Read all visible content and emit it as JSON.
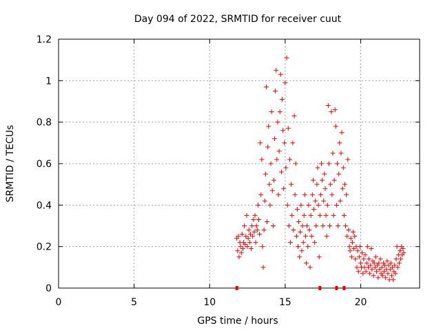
{
  "chart_data": {
    "type": "scatter",
    "title": "Day 094 of 2022, SRMTID for receiver cuut",
    "xlabel": "GPS time / hours",
    "ylabel": "SRMTID / TECUs",
    "xlim": [
      0,
      23.9
    ],
    "ylim": [
      0,
      1.2
    ],
    "xticks": [
      0,
      5,
      10,
      15,
      20
    ],
    "yticks": [
      0,
      0.2,
      0.4,
      0.6,
      0.8,
      1,
      1.2
    ],
    "grid": true,
    "marker": "plus",
    "marker_color": "#ee0000",
    "series": [
      {
        "name": "SRMTID",
        "points": [
          [
            11.8,
            0.24
          ],
          [
            11.85,
            0.18
          ],
          [
            11.9,
            0.25
          ],
          [
            11.95,
            0.15
          ],
          [
            12.0,
            0.22
          ],
          [
            12.05,
            0.2
          ],
          [
            12.1,
            0.17
          ],
          [
            12.15,
            0.26
          ],
          [
            12.2,
            0.19
          ],
          [
            12.25,
            0.22
          ],
          [
            12.3,
            0.3
          ],
          [
            12.35,
            0.21
          ],
          [
            12.4,
            0.25
          ],
          [
            12.45,
            0.35
          ],
          [
            12.5,
            0.2
          ],
          [
            12.55,
            0.24
          ],
          [
            12.6,
            0.28
          ],
          [
            12.65,
            0.22
          ],
          [
            12.7,
            0.26
          ],
          [
            12.75,
            0.19
          ],
          [
            12.8,
            0.3
          ],
          [
            12.85,
            0.25
          ],
          [
            12.9,
            0.33
          ],
          [
            12.95,
            0.27
          ],
          [
            13.0,
            0.35
          ],
          [
            13.05,
            0.22
          ],
          [
            13.1,
            0.3
          ],
          [
            13.15,
            0.28
          ],
          [
            13.2,
            0.4
          ],
          [
            13.25,
            0.33
          ],
          [
            13.3,
            0.26
          ],
          [
            13.35,
            0.7
          ],
          [
            13.4,
            0.45
          ],
          [
            13.45,
            0.62
          ],
          [
            13.5,
            0.2
          ],
          [
            13.55,
            0.1
          ],
          [
            13.6,
            0.28
          ],
          [
            13.65,
            0.42
          ],
          [
            13.7,
            0.55
          ],
          [
            13.75,
            0.97
          ],
          [
            13.8,
            0.32
          ],
          [
            13.85,
            0.68
          ],
          [
            13.9,
            0.78
          ],
          [
            13.95,
            0.5
          ],
          [
            14.0,
            0.4
          ],
          [
            14.05,
            0.6
          ],
          [
            14.1,
            0.85
          ],
          [
            14.15,
            0.47
          ],
          [
            14.2,
            0.3
          ],
          [
            14.25,
            0.52
          ],
          [
            14.3,
            0.72
          ],
          [
            14.35,
            0.95
          ],
          [
            14.4,
            1.05
          ],
          [
            14.45,
            0.62
          ],
          [
            14.5,
            0.8
          ],
          [
            14.55,
            0.45
          ],
          [
            14.6,
            0.66
          ],
          [
            14.65,
            0.85
          ],
          [
            14.7,
            1.03
          ],
          [
            14.75,
            0.56
          ],
          [
            14.8,
            0.91
          ],
          [
            14.85,
            0.76
          ],
          [
            14.9,
            0.48
          ],
          [
            14.95,
            0.7
          ],
          [
            15.0,
            0.99
          ],
          [
            15.05,
            0.58
          ],
          [
            15.1,
            1.11
          ],
          [
            15.15,
            0.4
          ],
          [
            15.2,
            0.77
          ],
          [
            15.25,
            0.3
          ],
          [
            15.3,
            0.62
          ],
          [
            15.35,
            0.22
          ],
          [
            15.4,
            0.5
          ],
          [
            15.45,
            0.35
          ],
          [
            15.5,
            0.7
          ],
          [
            15.55,
            0.28
          ],
          [
            15.6,
            0.83
          ],
          [
            15.65,
            0.45
          ],
          [
            15.7,
            0.6
          ],
          [
            15.75,
            0.25
          ],
          [
            15.8,
            0.38
          ],
          [
            15.85,
            0.2
          ],
          [
            15.9,
            0.32
          ],
          [
            15.95,
            0.15
          ],
          [
            16.0,
            0.27
          ],
          [
            16.05,
            0.4
          ],
          [
            16.1,
            0.18
          ],
          [
            16.15,
            0.3
          ],
          [
            16.2,
            0.22
          ],
          [
            16.25,
            0.35
          ],
          [
            16.3,
            0.45
          ],
          [
            16.35,
            0.25
          ],
          [
            16.4,
            0.12
          ],
          [
            16.45,
            0.3
          ],
          [
            16.5,
            0.2
          ],
          [
            16.55,
            0.4
          ],
          [
            16.6,
            0.28
          ],
          [
            16.65,
            0.1
          ],
          [
            16.7,
            0.35
          ],
          [
            16.75,
            0.25
          ],
          [
            16.8,
            0.45
          ],
          [
            16.85,
            0.52
          ],
          [
            16.9,
            0.38
          ],
          [
            16.95,
            0.22
          ],
          [
            17.0,
            0.42
          ],
          [
            17.05,
            0.3
          ],
          [
            17.1,
            0.5
          ],
          [
            17.15,
            0.58
          ],
          [
            17.2,
            0.4
          ],
          [
            17.25,
            0.15
          ],
          [
            17.3,
            0.35
          ],
          [
            17.35,
            0.45
          ],
          [
            17.4,
            0.6
          ],
          [
            17.45,
            0.52
          ],
          [
            17.5,
            0.3
          ],
          [
            17.55,
            0.42
          ],
          [
            17.6,
            0.55
          ],
          [
            17.65,
            0.48
          ],
          [
            17.7,
            0.35
          ],
          [
            17.75,
            0.25
          ],
          [
            17.8,
            0.4
          ],
          [
            17.85,
            0.88
          ],
          [
            17.9,
            0.6
          ],
          [
            17.95,
            0.3
          ],
          [
            18.0,
            0.5
          ],
          [
            18.05,
            0.85
          ],
          [
            18.1,
            0.45
          ],
          [
            18.15,
            0.65
          ],
          [
            18.2,
            0.35
          ],
          [
            18.25,
            0.52
          ],
          [
            18.3,
            0.86
          ],
          [
            18.35,
            0.78
          ],
          [
            18.4,
            0.4
          ],
          [
            18.45,
            0.6
          ],
          [
            18.5,
            0.3
          ],
          [
            18.55,
            0.55
          ],
          [
            18.6,
            0.7
          ],
          [
            18.65,
            0.42
          ],
          [
            18.7,
            0.65
          ],
          [
            18.75,
            0.75
          ],
          [
            18.8,
            0.48
          ],
          [
            18.85,
            0.58
          ],
          [
            18.9,
            0.35
          ],
          [
            18.95,
            0.5
          ],
          [
            19.0,
            0.3
          ],
          [
            19.05,
            0.45
          ],
          [
            19.1,
            0.25
          ],
          [
            19.15,
            0.62
          ],
          [
            19.2,
            0.28
          ],
          [
            19.25,
            0.2
          ],
          [
            19.3,
            0.18
          ],
          [
            19.35,
            0.24
          ],
          [
            19.4,
            0.15
          ],
          [
            19.45,
            0.22
          ],
          [
            19.5,
            0.27
          ],
          [
            19.55,
            0.19
          ],
          [
            19.6,
            0.25
          ],
          [
            19.65,
            0.14
          ],
          [
            19.7,
            0.2
          ],
          [
            19.75,
            0.1
          ],
          [
            19.8,
            0.18
          ],
          [
            19.85,
            0.08
          ],
          [
            19.9,
            0.15
          ],
          [
            19.95,
            0.2
          ],
          [
            20.0,
            0.12
          ],
          [
            20.05,
            0.1
          ],
          [
            20.1,
            0.17
          ],
          [
            20.15,
            0.07
          ],
          [
            20.2,
            0.14
          ],
          [
            20.25,
            0.1
          ],
          [
            20.3,
            0.16
          ],
          [
            20.35,
            0.08
          ],
          [
            20.4,
            0.12
          ],
          [
            20.45,
            0.2
          ],
          [
            20.5,
            0.1
          ],
          [
            20.55,
            0.14
          ],
          [
            20.6,
            0.07
          ],
          [
            20.65,
            0.11
          ],
          [
            20.7,
            0.19
          ],
          [
            20.75,
            0.09
          ],
          [
            20.8,
            0.13
          ],
          [
            20.85,
            0.06
          ],
          [
            20.9,
            0.12
          ],
          [
            20.95,
            0.1
          ],
          [
            21.0,
            0.15
          ],
          [
            21.05,
            0.08
          ],
          [
            21.1,
            0.11
          ],
          [
            21.15,
            0.05
          ],
          [
            21.2,
            0.12
          ],
          [
            21.25,
            0.09
          ],
          [
            21.3,
            0.14
          ],
          [
            21.35,
            0.07
          ],
          [
            21.4,
            0.1
          ],
          [
            21.45,
            0.06
          ],
          [
            21.5,
            0.12
          ],
          [
            21.55,
            0.08
          ],
          [
            21.6,
            0.11
          ],
          [
            21.65,
            0.05
          ],
          [
            21.7,
            0.09
          ],
          [
            21.75,
            0.13
          ],
          [
            21.8,
            0.07
          ],
          [
            21.85,
            0.11
          ],
          [
            21.9,
            0.04
          ],
          [
            21.95,
            0.09
          ],
          [
            22.0,
            0.12
          ],
          [
            22.05,
            0.06
          ],
          [
            22.1,
            0.1
          ],
          [
            22.15,
            0.04
          ],
          [
            22.2,
            0.08
          ],
          [
            22.25,
            0.11
          ],
          [
            22.3,
            0.07
          ],
          [
            22.35,
            0.14
          ],
          [
            22.4,
            0.2
          ],
          [
            22.45,
            0.1
          ],
          [
            22.5,
            0.16
          ],
          [
            22.55,
            0.12
          ],
          [
            22.6,
            0.18
          ],
          [
            22.65,
            0.14
          ],
          [
            22.7,
            0.2
          ],
          [
            22.75,
            0.16
          ],
          [
            22.8,
            0.19
          ],
          [
            22.85,
            0.17
          ]
        ]
      }
    ],
    "zero_flags_x": [
      11.8,
      17.3,
      18.4,
      18.9
    ]
  }
}
